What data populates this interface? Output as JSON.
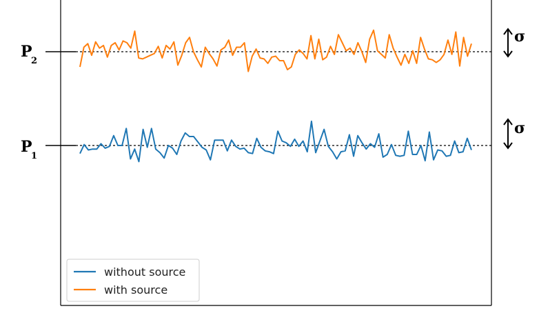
{
  "chart_data": {
    "type": "line",
    "title": "",
    "xlabel": "",
    "ylabel": "",
    "x_ticks_visible": false,
    "y_ticks_visible": false,
    "grid": false,
    "legend_position": "lower-left",
    "series": [
      {
        "name": "without source",
        "color": "#1f77b4",
        "values": [
          -0.9,
          0.1,
          -0.5,
          -0.4,
          -0.4,
          0.2,
          -0.3,
          -0.1,
          1.1,
          0.0,
          0.0,
          1.9,
          -1.5,
          -0.4,
          -1.8,
          1.8,
          -0.2,
          1.9,
          -0.4,
          -0.8,
          -1.4,
          0.0,
          -0.3,
          -1.0,
          0.5,
          1.4,
          1.0,
          1.0,
          0.4,
          -0.2,
          -0.5,
          -1.6,
          0.6,
          0.6,
          0.6,
          -0.6,
          0.6,
          -0.1,
          -0.4,
          -0.3,
          -0.8,
          -0.9,
          0.8,
          -0.2,
          -0.6,
          -0.7,
          -0.9,
          1.6,
          0.5,
          0.3,
          -0.1,
          0.7,
          -0.1,
          0.5,
          -0.7,
          2.7,
          -0.8,
          0.5,
          1.8,
          -0.1,
          -0.7,
          -1.5,
          -0.7,
          -0.6,
          1.2,
          -1.2,
          1.1,
          0.3,
          -0.4,
          0.2,
          -0.2,
          1.3,
          -1.3,
          -1.0,
          0.1,
          -1.1,
          -1.2,
          -1.1,
          1.6,
          -1.0,
          -1.0,
          0.0,
          -1.7,
          1.5,
          -1.6,
          -0.5,
          -0.6,
          -1.2,
          -1.1,
          0.5,
          -0.8,
          -0.7,
          0.8,
          -0.5
        ],
        "sigma": 1
      },
      {
        "name": "with source",
        "color": "#ff7f0e",
        "values": [
          -1.7,
          0.5,
          0.9,
          -0.4,
          1.1,
          0.4,
          0.7,
          -0.6,
          0.7,
          1.0,
          0.2,
          1.2,
          1.0,
          0.4,
          2.3,
          -0.7,
          -0.8,
          -0.6,
          -0.4,
          -0.2,
          0.6,
          -0.7,
          0.7,
          0.3,
          1.1,
          -1.5,
          -0.4,
          1.0,
          1.6,
          0.0,
          -0.9,
          -1.7,
          0.5,
          -0.2,
          -0.8,
          -1.6,
          0.2,
          0.5,
          1.3,
          -0.4,
          0.5,
          0.5,
          1.0,
          -2.2,
          -0.5,
          0.3,
          -0.7,
          -0.8,
          -1.3,
          -0.6,
          -0.5,
          -1.0,
          -1.0,
          -2.0,
          -1.7,
          -0.3,
          0.2,
          -0.2,
          -0.8,
          1.8,
          -0.8,
          1.4,
          -0.9,
          -0.6,
          0.6,
          -0.3,
          1.9,
          1.0,
          0.1,
          0.4,
          -0.3,
          1.0,
          0.0,
          -1.2,
          1.4,
          2.4,
          0.1,
          -0.3,
          -0.7,
          1.9,
          0.4,
          -0.6,
          -1.5,
          -0.3,
          -1.3,
          0.1,
          -1.3,
          1.6,
          0.3,
          -0.8,
          -0.9,
          -1.2,
          -0.9,
          -0.3,
          1.3,
          -0.3,
          2.2,
          -1.6,
          1.6,
          -0.5,
          0.9
        ],
        "sigma": 1
      }
    ],
    "levels": [
      {
        "label": "P",
        "subscript": "1",
        "series": "without source"
      },
      {
        "label": "P",
        "subscript": "2",
        "series": "with source"
      }
    ],
    "sigma_label": "σ",
    "legend": [
      "without source",
      "with source"
    ]
  }
}
